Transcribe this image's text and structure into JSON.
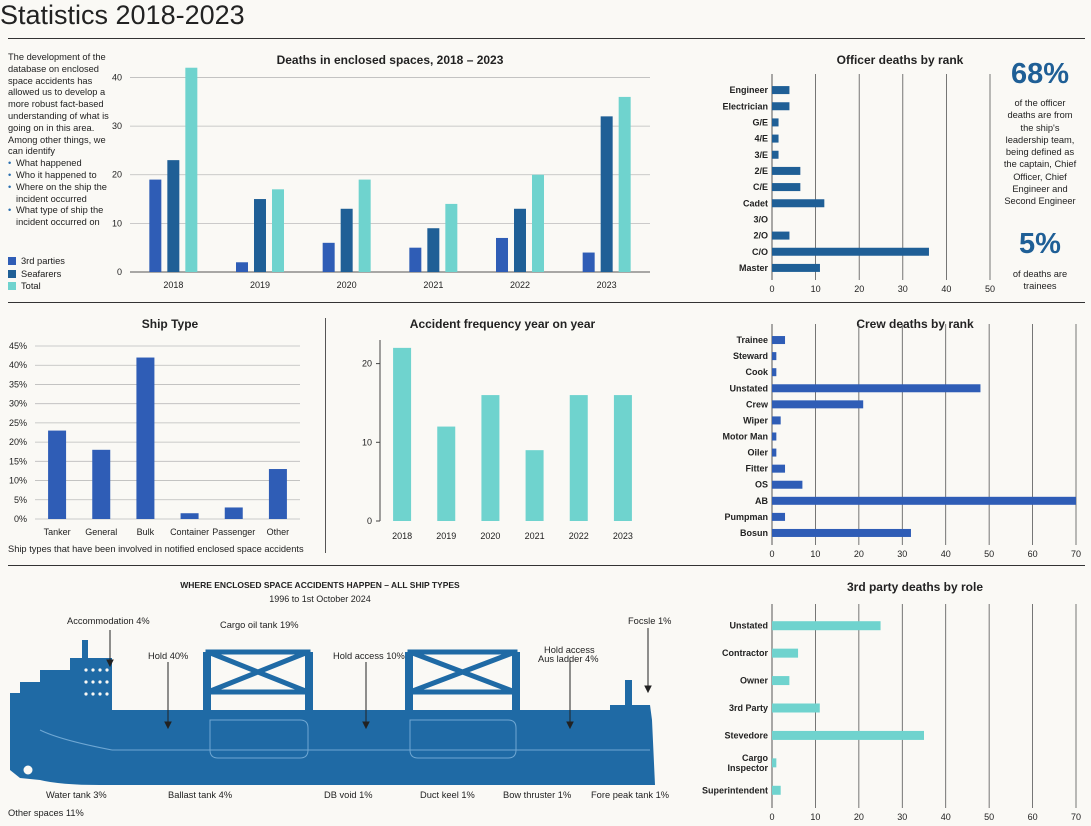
{
  "page_title": "Statistics 2018-2023",
  "intro": {
    "text": "The development of the database on enclosed space accidents has allowed us to develop a more robust fact-based understanding of what is going on in this area. Among other things, we can identify",
    "bullets": [
      "What happened",
      "Who it happened to",
      "Where on the ship the incident occurred",
      "What type of ship the incident occurred on"
    ]
  },
  "legend": [
    {
      "label": "3rd parties",
      "color": "#2f5db6"
    },
    {
      "label": "Seafarers",
      "color": "#1f5f96"
    },
    {
      "label": "Total",
      "color": "#6fd3ce"
    }
  ],
  "stats": {
    "officer_pct": "68%",
    "officer_text": "of the officer deaths are from the ship's leadership team, being defined as the captain, Chief Officer, Chief Engineer and Second Engineer",
    "trainee_pct": "5%",
    "trainee_text": "of deaths are trainees"
  },
  "ship_type_note": "Ship types that have been involved in notified enclosed space accidents",
  "ship_diagram": {
    "title": "WHERE ENCLOSED SPACE ACCIDENTS HAPPEN – ALL SHIP TYPES",
    "subtitle": "1996 to 1st October 2024",
    "labels_top": [
      "Accommodation 4%",
      "Cargo oil tank 19%",
      "Hold 40%",
      "Hold access 10%",
      "Hold access",
      "Aus ladder 4%",
      "Focsle 1%"
    ],
    "labels_bottom": [
      "Water tank 3%",
      "Ballast tank 4%",
      "DB void 1%",
      "Duct keel 1%",
      "Bow thruster 1%",
      "Fore peak tank 1%"
    ],
    "other": "Other spaces 11%"
  },
  "chart_data": [
    {
      "type": "bar",
      "title": "Deaths in enclosed spaces, 2018 – 2023",
      "categories": [
        "2018",
        "2019",
        "2020",
        "2021",
        "2022",
        "2023"
      ],
      "series": [
        {
          "name": "3rd parties",
          "values": [
            19,
            2,
            6,
            5,
            7,
            4
          ],
          "color": "#2f5db6"
        },
        {
          "name": "Seafarers",
          "values": [
            23,
            15,
            13,
            9,
            13,
            32
          ],
          "color": "#1f5f96"
        },
        {
          "name": "Total",
          "values": [
            42,
            17,
            19,
            14,
            20,
            36
          ],
          "color": "#6fd3ce"
        }
      ],
      "yticks": [
        0,
        10,
        20,
        30,
        40
      ],
      "ylim": [
        0,
        44
      ],
      "grid": true
    },
    {
      "type": "bar",
      "orientation": "horizontal",
      "title": "Officer deaths by rank",
      "categories": [
        "Engineer",
        "Electrician",
        "G/E",
        "4/E",
        "3/E",
        "2/E",
        "C/E",
        "Cadet",
        "3/O",
        "2/O",
        "C/O",
        "Master"
      ],
      "values": [
        4,
        4,
        1.5,
        1.5,
        1.5,
        6.5,
        6.5,
        12,
        0,
        4,
        36,
        11
      ],
      "xticks": [
        0,
        10,
        20,
        30,
        40,
        50
      ],
      "xlim": [
        0,
        50
      ],
      "color": "#1f5f96",
      "grid": true
    },
    {
      "type": "bar",
      "title": "Ship Type",
      "categories": [
        "Tanker",
        "General",
        "Bulk",
        "Container",
        "Passenger",
        "Other"
      ],
      "values": [
        23,
        18,
        42,
        1.5,
        3,
        13
      ],
      "yticks": [
        "0%",
        "5%",
        "10%",
        "15%",
        "20%",
        "25%",
        "30%",
        "35%",
        "40%",
        "45%"
      ],
      "ylim": [
        0,
        45
      ],
      "color": "#2f5db6",
      "grid": true
    },
    {
      "type": "bar",
      "title": "Accident frequency year on year",
      "categories": [
        "2018",
        "2019",
        "2020",
        "2021",
        "2022",
        "2023"
      ],
      "values": [
        22,
        12,
        16,
        9,
        16,
        16
      ],
      "yticks": [
        0,
        10,
        20
      ],
      "ylim": [
        0,
        23
      ],
      "color": "#6fd3ce",
      "grid": false
    },
    {
      "type": "bar",
      "orientation": "horizontal",
      "title": "Crew deaths by rank",
      "categories": [
        "Trainee",
        "Steward",
        "Cook",
        "Unstated",
        "Crew",
        "Wiper",
        "Motor Man",
        "Oiler",
        "Fitter",
        "OS",
        "AB",
        "Pumpman",
        "Bosun"
      ],
      "values": [
        3,
        1,
        1,
        48,
        21,
        2,
        1,
        1,
        3,
        7,
        70,
        3,
        32
      ],
      "xticks": [
        0,
        10,
        20,
        30,
        40,
        50,
        60,
        70
      ],
      "xlim": [
        0,
        70
      ],
      "color": "#2f5db6",
      "grid": true
    },
    {
      "type": "bar",
      "orientation": "horizontal",
      "title": "3rd party deaths by role",
      "categories": [
        "Unstated",
        "Contractor",
        "Owner",
        "3rd Party",
        "Stevedore",
        "Cargo Inspector",
        "Superintendent"
      ],
      "values": [
        25,
        6,
        4,
        11,
        35,
        1,
        2
      ],
      "xticks": [
        0,
        10,
        20,
        30,
        40,
        50,
        60,
        70
      ],
      "xlim": [
        0,
        70
      ],
      "color": "#6fd3ce",
      "grid": true
    }
  ]
}
